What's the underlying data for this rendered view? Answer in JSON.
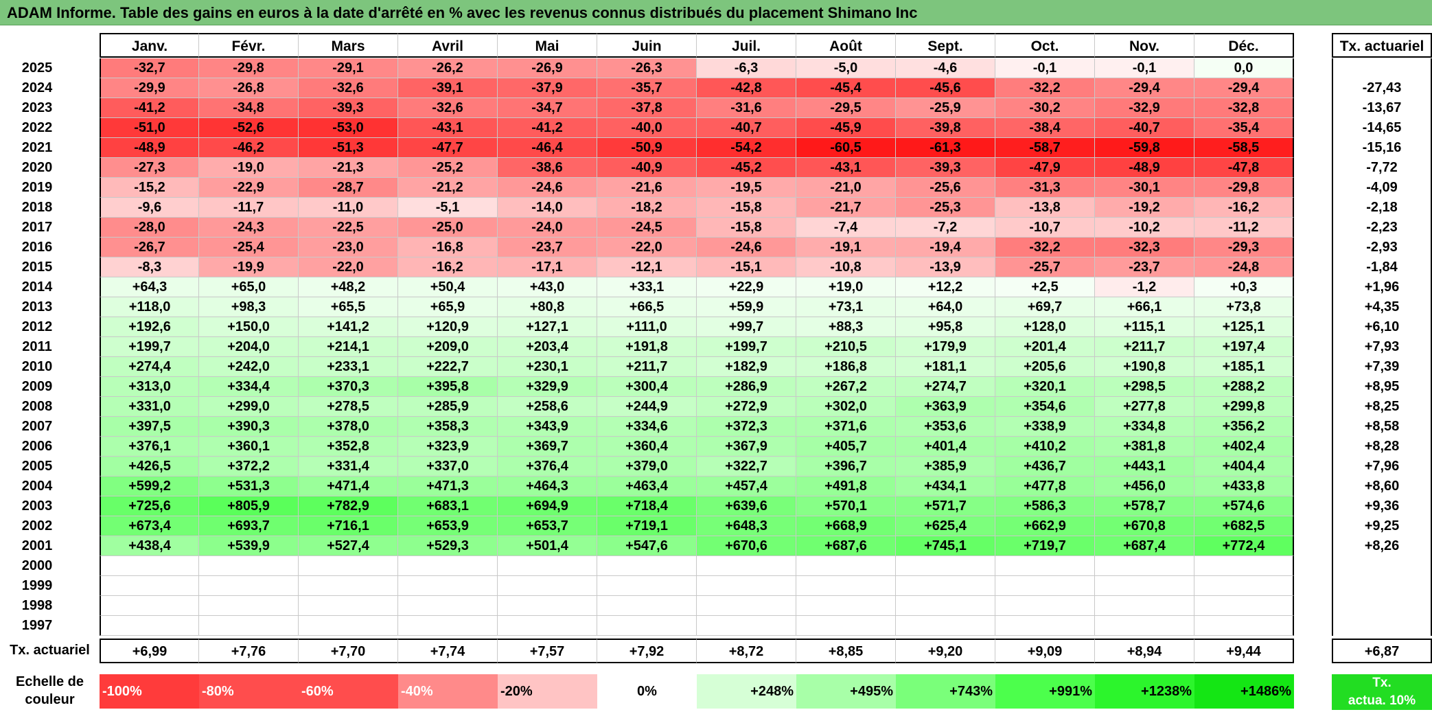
{
  "title": "ADAM Informe. Table des gains en euros à la date d'arrêté en % avec les revenus connus distribués du placement Shimano Inc",
  "months": [
    "Janv.",
    "Févr.",
    "Mars",
    "Avril",
    "Mai",
    "Juin",
    "Juil.",
    "Août",
    "Sept.",
    "Oct.",
    "Nov.",
    "Déc."
  ],
  "actuariel_header": "Tx. actuariel",
  "rows": [
    {
      "year": "2025",
      "vals": [
        "-32,7",
        "-29,8",
        "-29,1",
        "-26,2",
        "-26,9",
        "-26,3",
        "-6,3",
        "-5,0",
        "-4,6",
        "-0,1",
        "-0,1",
        "0,0"
      ],
      "act": ""
    },
    {
      "year": "2024",
      "vals": [
        "-29,9",
        "-26,8",
        "-32,6",
        "-39,1",
        "-37,9",
        "-35,7",
        "-42,8",
        "-45,4",
        "-45,6",
        "-32,2",
        "-29,4",
        "-29,4"
      ],
      "act": "-27,43"
    },
    {
      "year": "2023",
      "vals": [
        "-41,2",
        "-34,8",
        "-39,3",
        "-32,6",
        "-34,7",
        "-37,8",
        "-31,6",
        "-29,5",
        "-25,9",
        "-30,2",
        "-32,9",
        "-32,8"
      ],
      "act": "-13,67"
    },
    {
      "year": "2022",
      "vals": [
        "-51,0",
        "-52,6",
        "-53,0",
        "-43,1",
        "-41,2",
        "-40,0",
        "-40,7",
        "-45,9",
        "-39,8",
        "-38,4",
        "-40,7",
        "-35,4"
      ],
      "act": "-14,65"
    },
    {
      "year": "2021",
      "vals": [
        "-48,9",
        "-46,2",
        "-51,3",
        "-47,7",
        "-46,4",
        "-50,9",
        "-54,2",
        "-60,5",
        "-61,3",
        "-58,7",
        "-59,8",
        "-58,5"
      ],
      "act": "-15,16"
    },
    {
      "year": "2020",
      "vals": [
        "-27,3",
        "-19,0",
        "-21,3",
        "-25,2",
        "-38,6",
        "-40,9",
        "-45,2",
        "-43,1",
        "-39,3",
        "-47,9",
        "-48,9",
        "-47,8"
      ],
      "act": "-7,72"
    },
    {
      "year": "2019",
      "vals": [
        "-15,2",
        "-22,9",
        "-28,7",
        "-21,2",
        "-24,6",
        "-21,6",
        "-19,5",
        "-21,0",
        "-25,6",
        "-31,3",
        "-30,1",
        "-29,8"
      ],
      "act": "-4,09"
    },
    {
      "year": "2018",
      "vals": [
        "-9,6",
        "-11,7",
        "-11,0",
        "-5,1",
        "-14,0",
        "-18,2",
        "-15,8",
        "-21,7",
        "-25,3",
        "-13,8",
        "-19,2",
        "-16,2"
      ],
      "act": "-2,18"
    },
    {
      "year": "2017",
      "vals": [
        "-28,0",
        "-24,3",
        "-22,5",
        "-25,0",
        "-24,0",
        "-24,5",
        "-15,8",
        "-7,4",
        "-7,2",
        "-10,7",
        "-10,2",
        "-11,2"
      ],
      "act": "-2,23"
    },
    {
      "year": "2016",
      "vals": [
        "-26,7",
        "-25,4",
        "-23,0",
        "-16,8",
        "-23,7",
        "-22,0",
        "-24,6",
        "-19,1",
        "-19,4",
        "-32,2",
        "-32,3",
        "-29,3"
      ],
      "act": "-2,93"
    },
    {
      "year": "2015",
      "vals": [
        "-8,3",
        "-19,9",
        "-22,0",
        "-16,2",
        "-17,1",
        "-12,1",
        "-15,1",
        "-10,8",
        "-13,9",
        "-25,7",
        "-23,7",
        "-24,8"
      ],
      "act": "-1,84"
    },
    {
      "year": "2014",
      "vals": [
        "+64,3",
        "+65,0",
        "+48,2",
        "+50,4",
        "+43,0",
        "+33,1",
        "+22,9",
        "+19,0",
        "+12,2",
        "+2,5",
        "-1,2",
        "+0,3"
      ],
      "act": "+1,96"
    },
    {
      "year": "2013",
      "vals": [
        "+118,0",
        "+98,3",
        "+65,5",
        "+65,9",
        "+80,8",
        "+66,5",
        "+59,9",
        "+73,1",
        "+64,0",
        "+69,7",
        "+66,1",
        "+73,8"
      ],
      "act": "+4,35"
    },
    {
      "year": "2012",
      "vals": [
        "+192,6",
        "+150,0",
        "+141,2",
        "+120,9",
        "+127,1",
        "+111,0",
        "+99,7",
        "+88,3",
        "+95,8",
        "+128,0",
        "+115,1",
        "+125,1"
      ],
      "act": "+6,10"
    },
    {
      "year": "2011",
      "vals": [
        "+199,7",
        "+204,0",
        "+214,1",
        "+209,0",
        "+203,4",
        "+191,8",
        "+199,7",
        "+210,5",
        "+179,9",
        "+201,4",
        "+211,7",
        "+197,4"
      ],
      "act": "+7,93"
    },
    {
      "year": "2010",
      "vals": [
        "+274,4",
        "+242,0",
        "+233,1",
        "+222,7",
        "+230,1",
        "+211,7",
        "+182,9",
        "+186,8",
        "+181,1",
        "+205,6",
        "+190,8",
        "+185,1"
      ],
      "act": "+7,39"
    },
    {
      "year": "2009",
      "vals": [
        "+313,0",
        "+334,4",
        "+370,3",
        "+395,8",
        "+329,9",
        "+300,4",
        "+286,9",
        "+267,2",
        "+274,7",
        "+320,1",
        "+298,5",
        "+288,2"
      ],
      "act": "+8,95"
    },
    {
      "year": "2008",
      "vals": [
        "+331,0",
        "+299,0",
        "+278,5",
        "+285,9",
        "+258,6",
        "+244,9",
        "+272,9",
        "+302,0",
        "+363,9",
        "+354,6",
        "+277,8",
        "+299,8"
      ],
      "act": "+8,25"
    },
    {
      "year": "2007",
      "vals": [
        "+397,5",
        "+390,3",
        "+378,0",
        "+358,3",
        "+343,9",
        "+334,6",
        "+372,3",
        "+371,6",
        "+353,6",
        "+338,9",
        "+334,8",
        "+356,2"
      ],
      "act": "+8,58"
    },
    {
      "year": "2006",
      "vals": [
        "+376,1",
        "+360,1",
        "+352,8",
        "+323,9",
        "+369,7",
        "+360,4",
        "+367,9",
        "+405,7",
        "+401,4",
        "+410,2",
        "+381,8",
        "+402,4"
      ],
      "act": "+8,28"
    },
    {
      "year": "2005",
      "vals": [
        "+426,5",
        "+372,2",
        "+331,4",
        "+337,0",
        "+376,4",
        "+379,0",
        "+322,7",
        "+396,7",
        "+385,9",
        "+436,7",
        "+443,1",
        "+404,4"
      ],
      "act": "+7,96"
    },
    {
      "year": "2004",
      "vals": [
        "+599,2",
        "+531,3",
        "+471,4",
        "+471,3",
        "+464,3",
        "+463,4",
        "+457,4",
        "+491,8",
        "+434,1",
        "+477,8",
        "+456,0",
        "+433,8"
      ],
      "act": "+8,60"
    },
    {
      "year": "2003",
      "vals": [
        "+725,6",
        "+805,9",
        "+782,9",
        "+683,1",
        "+694,9",
        "+718,4",
        "+639,6",
        "+570,1",
        "+571,7",
        "+586,3",
        "+578,7",
        "+574,6"
      ],
      "act": "+9,36"
    },
    {
      "year": "2002",
      "vals": [
        "+673,4",
        "+693,7",
        "+716,1",
        "+653,9",
        "+653,7",
        "+719,1",
        "+648,3",
        "+668,9",
        "+625,4",
        "+662,9",
        "+670,8",
        "+682,5"
      ],
      "act": "+9,25"
    },
    {
      "year": "2001",
      "vals": [
        "+438,4",
        "+539,9",
        "+527,4",
        "+529,3",
        "+501,4",
        "+547,6",
        "+670,6",
        "+687,6",
        "+745,1",
        "+719,7",
        "+687,4",
        "+772,4"
      ],
      "act": "+8,26"
    },
    {
      "year": "2000",
      "vals": [
        "",
        "",
        "",
        "",
        "",
        "",
        "",
        "",
        "",
        "",
        "",
        ""
      ],
      "act": ""
    },
    {
      "year": "1999",
      "vals": [
        "",
        "",
        "",
        "",
        "",
        "",
        "",
        "",
        "",
        "",
        "",
        ""
      ],
      "act": ""
    },
    {
      "year": "1998",
      "vals": [
        "",
        "",
        "",
        "",
        "",
        "",
        "",
        "",
        "",
        "",
        "",
        ""
      ],
      "act": ""
    },
    {
      "year": "1997",
      "vals": [
        "",
        "",
        "",
        "",
        "",
        "",
        "",
        "",
        "",
        "",
        "",
        ""
      ],
      "act": ""
    }
  ],
  "footer": {
    "label": "Tx. actuariel",
    "vals": [
      "+6,99",
      "+7,76",
      "+7,70",
      "+7,74",
      "+7,57",
      "+7,92",
      "+8,72",
      "+8,85",
      "+9,20",
      "+9,09",
      "+8,94",
      "+9,44"
    ],
    "act": "+6,87"
  },
  "scale": {
    "label_line1": "Echelle de",
    "label_line2": "couleur",
    "items": [
      {
        "text": "-100%",
        "color": "#ff3b3b",
        "align": "left"
      },
      {
        "text": "-80%",
        "color": "#ff4d4d",
        "align": "left"
      },
      {
        "text": "-60%",
        "color": "#ff4d4d",
        "align": "left"
      },
      {
        "text": "-40%",
        "color": "#ff8a8a",
        "align": "left"
      },
      {
        "text": "-20%",
        "color": "#ffc4c4",
        "align": "left"
      },
      {
        "text": "0%",
        "color": "#ffffff",
        "align": "center"
      },
      {
        "text": "+248%",
        "color": "#d6ffd6",
        "align": "right"
      },
      {
        "text": "+495%",
        "color": "#a8ffa8",
        "align": "right"
      },
      {
        "text": "+743%",
        "color": "#7aff7a",
        "align": "right"
      },
      {
        "text": "+991%",
        "color": "#4cff4c",
        "align": "right"
      },
      {
        "text": "+1238%",
        "color": "#2cf52c",
        "align": "right"
      },
      {
        "text": "+1486%",
        "color": "#14e614",
        "align": "right"
      }
    ],
    "act_line1": "Tx.",
    "act_line2": "actua. 10%",
    "act_color": "#22dd22"
  }
}
